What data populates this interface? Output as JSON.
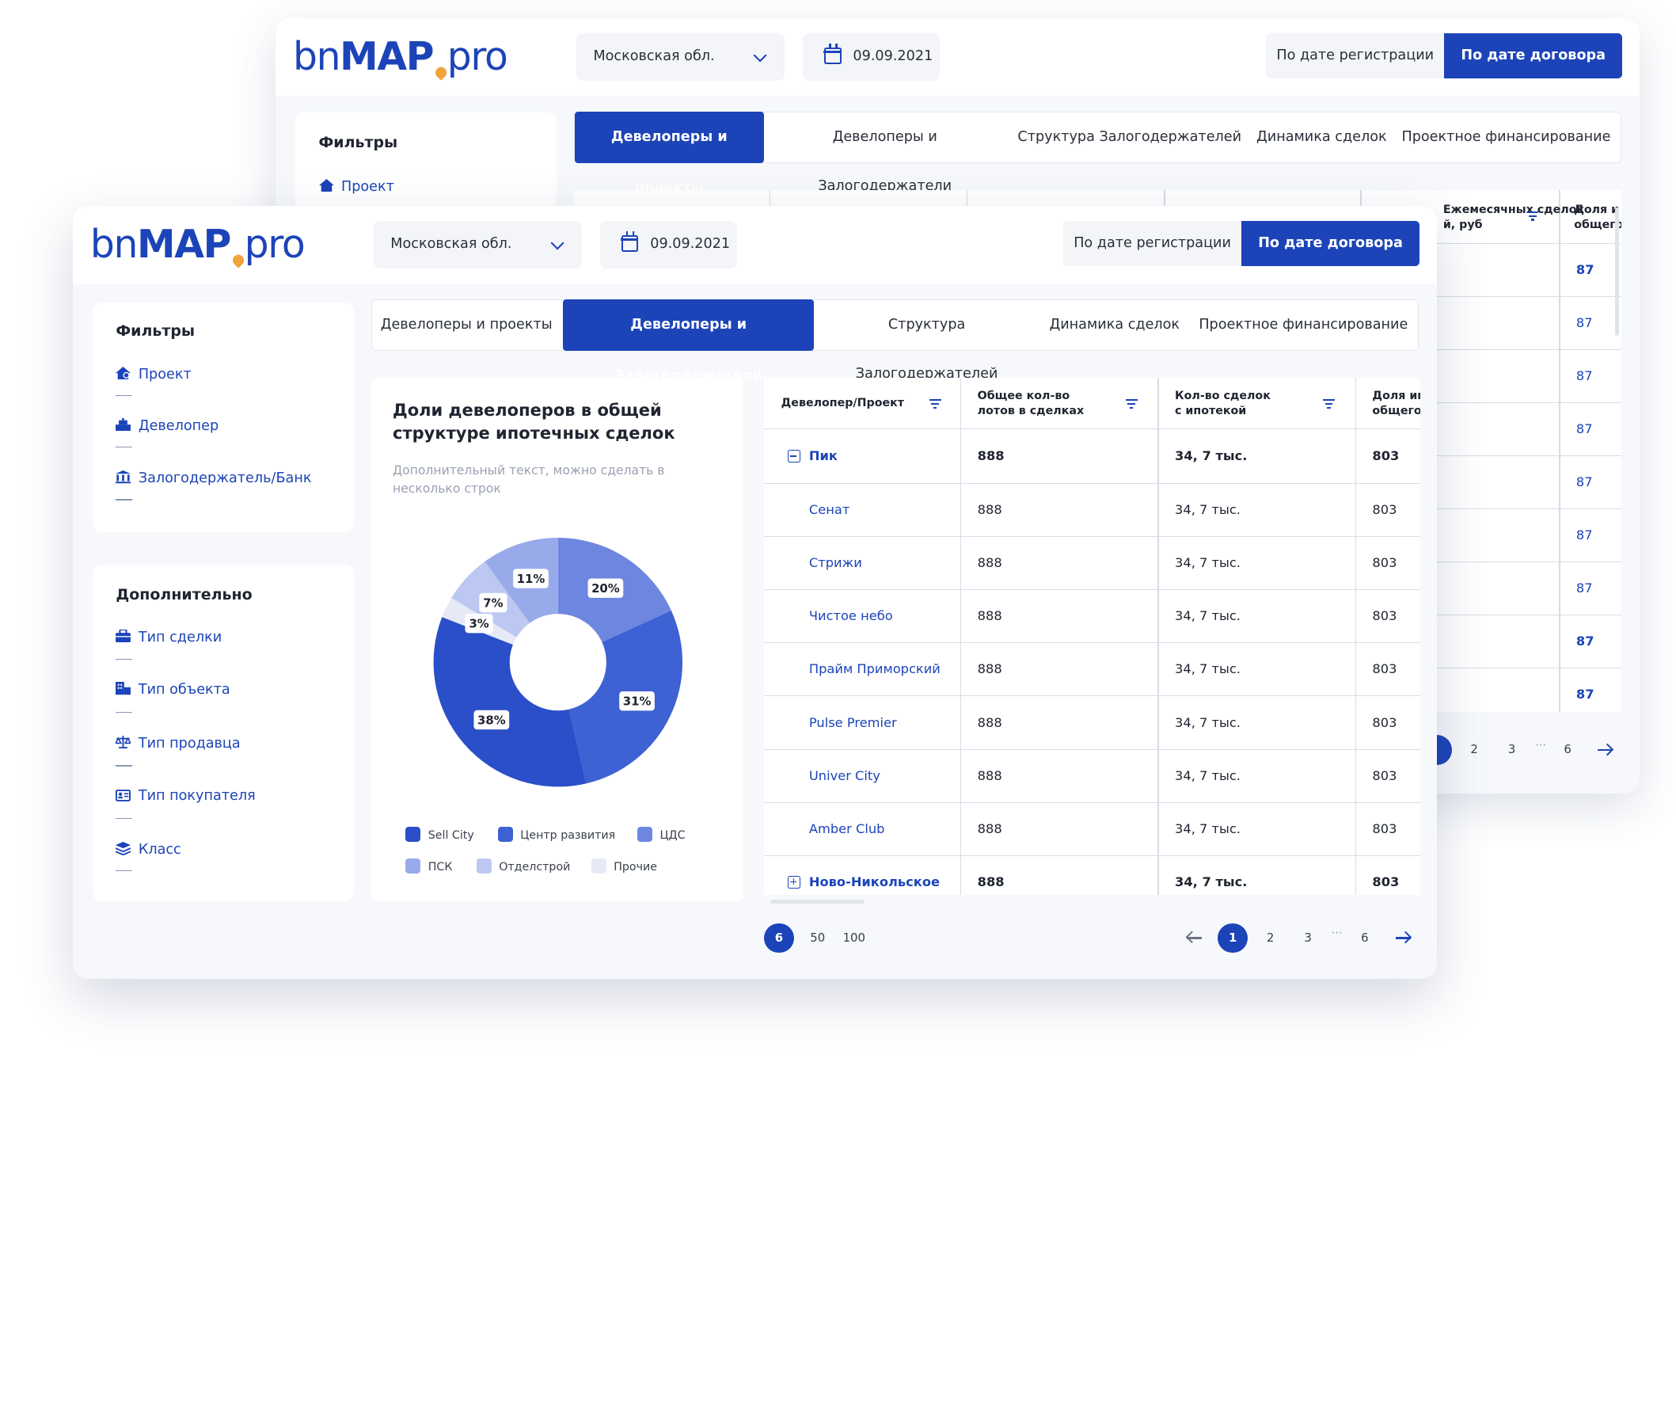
{
  "back": {
    "logo": {
      "part1": "bn",
      "part2": "MAP",
      "part3": "pro"
    },
    "region": "Московская обл.",
    "date": "09.09.2021",
    "by_registration": "По дате регистрации",
    "by_contract": "По дате договора",
    "tabs": [
      "Девелоперы и проекты",
      "Девелоперы и Залогодержатели",
      "Структура Залогодержателей",
      "Динамика сделок",
      "Проектное финансирование"
    ],
    "filters_title": "Фильтры",
    "filter_project": "Проект",
    "col_amount": "Ежемесячных сделок\nй, руб",
    "col_share": "Доля и\nобщего",
    "values": [
      "87",
      "87",
      "87",
      "87",
      "87",
      "87",
      "87",
      "87",
      "87"
    ],
    "pages": [
      "2",
      "3",
      "···",
      "6"
    ]
  },
  "front": {
    "logo": {
      "part1": "bn",
      "part2": "MAP",
      "part3": "pro"
    },
    "region": "Московская обл.",
    "date": "09.09.2021",
    "by_registration": "По дате регистрации",
    "by_contract": "По дате договора",
    "tabs": [
      "Девелоперы и проекты",
      "Девелоперы и Залогодержатели",
      "Структура Залогодержателей",
      "Динамика сделок",
      "Проектное финансирование"
    ],
    "filters": {
      "title": "Фильтры",
      "items": [
        "Проект",
        "Девелопер",
        "Залогодержатель/Банк"
      ]
    },
    "additional": {
      "title": "Дополнительно",
      "items": [
        "Тип сделки",
        "Тип объекта",
        "Тип продавца",
        "Тип покупателя",
        "Класс"
      ]
    },
    "chart": {
      "title": "Доли девелоперов в общей структуре ипотечных сделок",
      "subtitle": "Дополнительный текст, можно сделать в несколько строк"
    },
    "table": {
      "headers": [
        "Девелопер/Проект",
        "Общее кол-во\nлотов в сделках",
        "Кол-во сделок\nс ипотекой",
        "Доля ипо\nобщего о"
      ],
      "rows": [
        {
          "name": "Пик",
          "lots": "888",
          "deals": "34, 7 тыс.",
          "share": "803"
        },
        {
          "name": "Сенат",
          "lots": "888",
          "deals": "34, 7 тыс.",
          "share": "803"
        },
        {
          "name": "Стрижи",
          "lots": "888",
          "deals": "34, 7 тыс.",
          "share": "803"
        },
        {
          "name": "Чистое небо",
          "lots": "888",
          "deals": "34, 7 тыс.",
          "share": "803"
        },
        {
          "name": "Прайм Приморский",
          "lots": "888",
          "deals": "34, 7 тыс.",
          "share": "803"
        },
        {
          "name": "Pulse Premier",
          "lots": "888",
          "deals": "34, 7 тыс.",
          "share": "803"
        },
        {
          "name": "Univer City",
          "lots": "888",
          "deals": "34, 7 тыс.",
          "share": "803"
        },
        {
          "name": "Amber Club",
          "lots": "888",
          "deals": "34, 7 тыс.",
          "share": "803"
        },
        {
          "name": "Ново-Никольское",
          "lots": "888",
          "deals": "34, 7 тыс.",
          "share": "803"
        }
      ]
    },
    "page_size": {
      "current": "6",
      "options": [
        "50",
        "100"
      ]
    },
    "pagination": {
      "current": "1",
      "pages": [
        "2",
        "3",
        "···",
        "6"
      ]
    }
  },
  "colors": {
    "primary": "#1c44b8",
    "accent_pin": "#f0a43a"
  },
  "chart_data": {
    "type": "pie",
    "title": "Доли девелоперов в общей структуре ипотечных сделок",
    "labels": [
      "Sell City",
      "Центр развития",
      "ЦДС",
      "ПСК",
      "Отделстрой",
      "Прочие"
    ],
    "values": [
      38,
      31,
      20,
      11,
      7,
      3
    ],
    "value_labels": [
      "38%",
      "31%",
      "20%",
      "11%",
      "7%",
      "3%"
    ],
    "colors": [
      "#2a4fc9",
      "#3e61d3",
      "#6d87e0",
      "#98aae9",
      "#bcc8f1",
      "#e6eaf6"
    ],
    "donut": true,
    "legend_position": "bottom"
  }
}
